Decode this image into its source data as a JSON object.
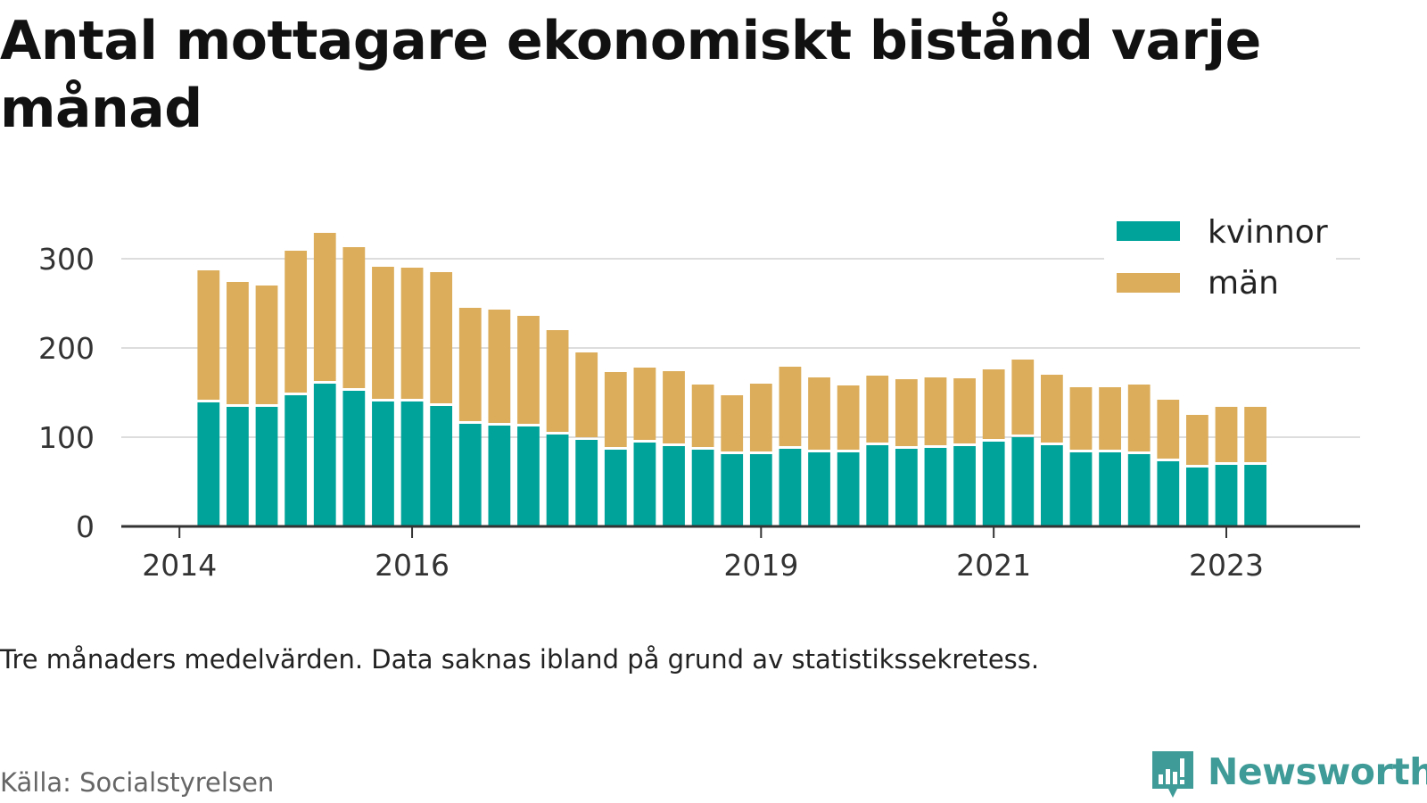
{
  "title": "Antal mottagare ekonomiskt bistånd varje månad",
  "note": "Tre månaders medelvärden. Data saknas ibland på grund av statistikssekretess.",
  "source": "Källa: Socialstyrelsen",
  "brand": "Newsworthy",
  "chart_data": {
    "type": "bar",
    "stacked": true,
    "title": "Antal mottagare ekonomiskt bistånd varje månad",
    "xlabel": "",
    "ylabel": "",
    "ylim": [
      0,
      335
    ],
    "yticks": [
      0,
      100,
      200,
      300
    ],
    "xticks": [
      2014,
      2016,
      2019,
      2021,
      2023
    ],
    "xlim": [
      2013.5,
      2024.15
    ],
    "grid": true,
    "legend_position": "top-right",
    "colors": {
      "kvinnor": "#00a39a",
      "män": "#dcad5b"
    },
    "x": [
      2014.25,
      2014.5,
      2014.75,
      2015.0,
      2015.25,
      2015.5,
      2015.75,
      2016.0,
      2016.25,
      2016.5,
      2016.75,
      2017.0,
      2017.25,
      2017.5,
      2017.75,
      2018.0,
      2018.25,
      2018.5,
      2018.75,
      2019.0,
      2019.25,
      2019.5,
      2019.75,
      2020.0,
      2020.25,
      2020.5,
      2020.75,
      2021.0,
      2021.25,
      2021.5,
      2021.75,
      2022.0,
      2022.25,
      2022.5,
      2022.75,
      2023.0,
      2023.25
    ],
    "series": [
      {
        "name": "kvinnor",
        "values": [
          139,
          134,
          134,
          147,
          160,
          152,
          140,
          140,
          135,
          115,
          113,
          112,
          103,
          97,
          86,
          94,
          90,
          86,
          81,
          81,
          87,
          83,
          83,
          91,
          87,
          88,
          90,
          95,
          100,
          91,
          83,
          83,
          81,
          73,
          66,
          69,
          69
        ]
      },
      {
        "name": "män",
        "values": [
          148,
          140,
          136,
          162,
          169,
          161,
          151,
          150,
          150,
          130,
          130,
          124,
          117,
          98,
          87,
          84,
          84,
          73,
          66,
          79,
          92,
          84,
          75,
          78,
          78,
          79,
          76,
          81,
          87,
          79,
          73,
          73,
          78,
          69,
          59,
          65,
          65
        ]
      }
    ]
  }
}
